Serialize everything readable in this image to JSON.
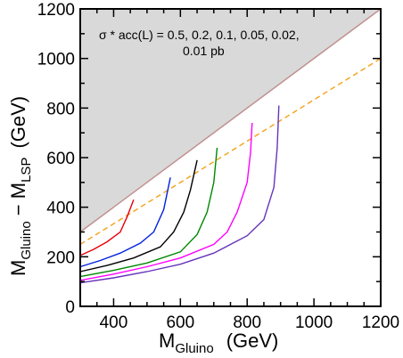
{
  "chart_data": {
    "type": "line",
    "xlabel": {
      "main": "M",
      "sub": "Gluino",
      "unit": "(GeV)"
    },
    "ylabel": {
      "m1": "M",
      "s1": "Gluino",
      "dash": " − M",
      "s2": "LSP",
      "unit": "(GeV)"
    },
    "xlim": [
      300,
      1200
    ],
    "ylim": [
      0,
      1200
    ],
    "xticks": [
      400,
      600,
      800,
      1000,
      1200
    ],
    "yticks": [
      0,
      200,
      400,
      600,
      800,
      1000,
      1200
    ],
    "annotation": {
      "line1": "σ * acc(L) = 0.5,  0.2,  0.1,  0.05,  0.02,",
      "line2": "0.01 pb"
    },
    "excluded_region": {
      "fill": "#d9d9d9",
      "boundary_color": "#c09090",
      "boundary": {
        "x": [
          300,
          1200
        ],
        "y": [
          300,
          1200
        ]
      }
    },
    "reference_line": {
      "color": "#f5a623",
      "style": "dashed",
      "x": [
        300,
        1200
      ],
      "y": [
        250,
        1000
      ]
    },
    "series": [
      {
        "color": "#e8000b",
        "x": [
          300,
          340,
          380,
          420,
          440,
          460
        ],
        "y": [
          205,
          230,
          260,
          300,
          360,
          430
        ]
      },
      {
        "color": "#0022dd",
        "x": [
          300,
          360,
          420,
          480,
          520,
          550,
          570
        ],
        "y": [
          160,
          185,
          215,
          255,
          300,
          390,
          520
        ]
      },
      {
        "color": "#000000",
        "x": [
          300,
          380,
          460,
          540,
          580,
          610,
          630,
          650
        ],
        "y": [
          140,
          165,
          195,
          240,
          300,
          380,
          470,
          590
        ]
      },
      {
        "color": "#008800",
        "x": [
          300,
          400,
          500,
          600,
          650,
          680,
          700,
          710
        ],
        "y": [
          120,
          145,
          175,
          220,
          290,
          380,
          500,
          640
        ]
      },
      {
        "color": "#ff00ff",
        "x": [
          300,
          400,
          500,
          600,
          700,
          740,
          770,
          800,
          810,
          815
        ],
        "y": [
          105,
          130,
          160,
          195,
          250,
          300,
          380,
          500,
          620,
          740
        ]
      },
      {
        "color": "#6633bb",
        "x": [
          300,
          400,
          500,
          600,
          700,
          800,
          850,
          880,
          890,
          895
        ],
        "y": [
          95,
          115,
          140,
          170,
          215,
          285,
          350,
          480,
          640,
          810
        ]
      }
    ]
  }
}
